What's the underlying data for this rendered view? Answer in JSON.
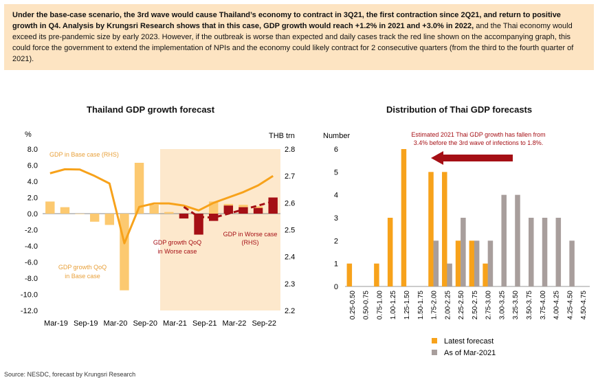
{
  "summary": {
    "bold": "Under the base-case scenario, the 3rd wave would cause Thailand’s economy to contract in 3Q21, the first contraction since 2Q21, and return to positive growth in Q4. Analysis by Krungsri Research shows that in this case, GDP growth would reach +1.2% in 2021 and +3.0% in 2022,",
    "normal": " and the Thai economy would exceed its pre-pandemic size by early 2023. However, if the outbreak is worse than expected and daily cases track the red line shown on the accompanying graph, this could force the government to extend the implementation of NPIs and the economy could likely contract for 2 consecutive quarters (from the third to the fourth quarter of 2021)."
  },
  "source": "Source: NESDC, forecast by Krungsri Research",
  "colors": {
    "orange": "#f7a21b",
    "light_orange": "#fcc970",
    "dark_red": "#a50f15",
    "gray": "#a89e9c",
    "shade": "#fde8cc"
  },
  "chart_data": [
    {
      "type": "bar",
      "title": "Thailand GDP growth forecast",
      "y_left_unit": "%",
      "y_right_unit": "THB trn",
      "ylim_left": [
        -12,
        8
      ],
      "ylim_right": [
        2.2,
        2.8
      ],
      "yticks_left": [
        "8.0",
        "6.0",
        "4.0",
        "2.0",
        "0.0",
        "-2.0",
        "-4.0",
        "-6.0",
        "-8.0",
        "-10.0",
        "-12.0"
      ],
      "yticks_right": [
        "2.8",
        "2.7",
        "2.6",
        "2.5",
        "2.4",
        "2.3",
        "2.2"
      ],
      "x_labels": [
        "Mar-19",
        "Sep-19",
        "Mar-20",
        "Sep-20",
        "Mar-21",
        "Sep-21",
        "Mar-22",
        "Sep-22"
      ],
      "quarters": [
        "Mar-19",
        "Jun-19",
        "Sep-19",
        "Dec-19",
        "Mar-20",
        "Jun-20",
        "Sep-20",
        "Dec-20",
        "Mar-21",
        "Jun-21",
        "Sep-21",
        "Dec-21",
        "Mar-22",
        "Jun-22",
        "Sep-22",
        "Dec-22"
      ],
      "forecast_shading_start": "Mar-21",
      "series": [
        {
          "name": "GDP growth QoQ in Base case",
          "kind": "bar",
          "color": "#fcc970",
          "values": [
            1.5,
            0.8,
            0.0,
            -1.0,
            -1.4,
            -9.5,
            6.3,
            1.1,
            0.2,
            -0.5,
            -1.0,
            1.5,
            1.2,
            1.1,
            0.9,
            1.3
          ]
        },
        {
          "name": "GDP growth QoQ in Worse case",
          "kind": "bar",
          "color": "#a50f15",
          "values": [
            null,
            null,
            null,
            null,
            null,
            null,
            null,
            null,
            null,
            -0.6,
            -2.6,
            -0.9,
            1.0,
            0.8,
            0.7,
            2.0
          ]
        },
        {
          "name": "GDP in Base case (RHS)",
          "kind": "line",
          "axis": "right",
          "color": "#f7a21b",
          "values": [
            2.71,
            2.725,
            2.724,
            2.7,
            2.672,
            2.45,
            2.585,
            2.598,
            2.598,
            2.59,
            2.572,
            2.6,
            2.62,
            2.64,
            2.665,
            2.7
          ]
        },
        {
          "name": "GDP in Worse case (RHS)",
          "kind": "dashed-line",
          "axis": "right",
          "color": "#a50f15",
          "values": [
            null,
            null,
            null,
            null,
            null,
            null,
            null,
            null,
            null,
            2.585,
            2.548,
            2.545,
            2.56,
            2.575,
            2.59,
            2.605
          ]
        }
      ],
      "annotations": [
        "GDP in Base case (RHS)",
        "GDP growth QoQ",
        "in Base case",
        "GDP growth QoQ",
        "in Worse case",
        "GDP in Worse case",
        "(RHS)"
      ]
    },
    {
      "type": "bar",
      "title": "Distribution of Thai GDP forecasts",
      "ylabel": "Number",
      "ylim": [
        0,
        6
      ],
      "yticks": [
        "0",
        "1",
        "2",
        "3",
        "4",
        "5",
        "6"
      ],
      "categories": [
        "0.25-0.50",
        "0.50-0.75",
        "0.75-1.00",
        "1.00-1.25",
        "1.25-1.50",
        "1.50-1.75",
        "1.75-2.00",
        "2.00-2.25",
        "2.25-2.50",
        "2.50-2.75",
        "2.75-3.00",
        "3.00-3.25",
        "3.25-3.50",
        "3.50-3.75",
        "3.75-4.00",
        "4.00-4.25",
        "4.25-4.50",
        "4.50-4.75"
      ],
      "series": [
        {
          "name": "Latest forecast",
          "color": "#f7a21b",
          "values": [
            1,
            0,
            1,
            3,
            6,
            0,
            5,
            5,
            2,
            2,
            1,
            0,
            0,
            0,
            0,
            0,
            0,
            0
          ]
        },
        {
          "name": "As of Mar-2021",
          "color": "#a89e9c",
          "values": [
            0,
            0,
            0,
            0,
            0,
            0,
            2,
            1,
            3,
            2,
            2,
            4,
            4,
            3,
            3,
            3,
            2,
            0
          ]
        }
      ],
      "annotation": [
        "Estimated 2021 Thai GDP growth has fallen from",
        "3.4% before the 3rd wave of infections to 1.8%."
      ],
      "legend": "bottom"
    }
  ]
}
